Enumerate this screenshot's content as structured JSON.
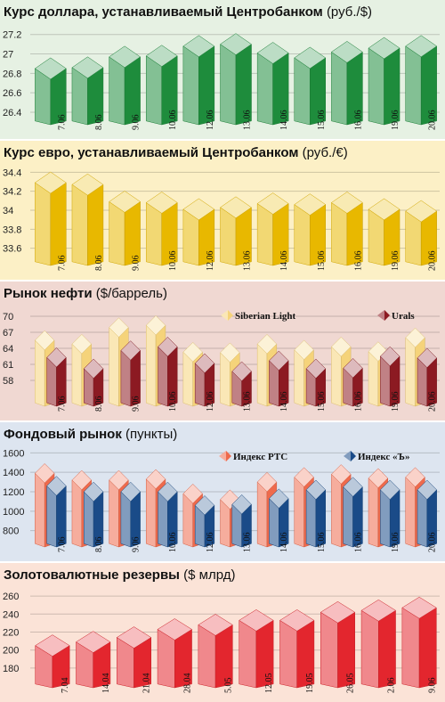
{
  "panels": [
    {
      "title_main": "Курс доллара, устанавливаемый Центробанком",
      "title_unit": "(руб./$)"
    },
    {
      "title_main": "Курс евро, устанавливаемый Центробанком",
      "title_unit": "(руб./€)"
    },
    {
      "title_main": "Рынок нефти",
      "title_unit": "($/баррель)"
    },
    {
      "title_main": "Фондовый рынок",
      "title_unit": "(пункты)"
    },
    {
      "title_main": "Золотовалютные резервы",
      "title_unit": "($ млрд)"
    }
  ],
  "chart_data": [
    {
      "type": "bar",
      "categories": [
        "7.06",
        "8.06",
        "9.06",
        "10.06",
        "12.06",
        "13.06",
        "14.06",
        "15.06",
        "16.06",
        "19.06",
        "20.06"
      ],
      "series": [
        {
          "values": [
            26.85,
            26.86,
            26.97,
            26.98,
            27.08,
            27.1,
            27.01,
            26.96,
            27.02,
            27.06,
            27.08
          ],
          "color": "#1e8c3c"
        }
      ],
      "yticks": [
        26.4,
        26.6,
        26.8,
        27.0,
        27.2
      ],
      "ylim": [
        26.4,
        27.28
      ],
      "grid": true,
      "panel_bg": "#e6f1e3"
    },
    {
      "type": "bar",
      "categories": [
        "7.06",
        "8.06",
        "9.06",
        "10.06",
        "12.06",
        "13.06",
        "14.06",
        "15.06",
        "16.06",
        "19.06",
        "20.06"
      ],
      "series": [
        {
          "values": [
            34.29,
            34.27,
            34.09,
            34.08,
            34.01,
            34.03,
            34.07,
            34.06,
            34.08,
            34.01,
            33.99
          ],
          "color": "#e8b800"
        }
      ],
      "yticks": [
        33.6,
        33.8,
        34.0,
        34.2,
        34.4
      ],
      "ylim": [
        33.55,
        34.45
      ],
      "grid": true,
      "panel_bg": "#fcf0c6"
    },
    {
      "type": "bar",
      "categories": [
        "7.06",
        "8.06",
        "9.06",
        "10.06",
        "12.06",
        "13.06",
        "14.06",
        "15.06",
        "16.06",
        "19.06",
        "20.06"
      ],
      "series": [
        {
          "name": "Siberian Light",
          "values": [
            65.5,
            64.8,
            67.9,
            68.3,
            63.3,
            63.2,
            64.8,
            63.7,
            64.3,
            63.4,
            66.0
          ],
          "color": "#f5d37a"
        },
        {
          "name": "Urals",
          "values": [
            62.3,
            60.2,
            63.6,
            64.3,
            61.2,
            59.7,
            61.7,
            60.2,
            60.3,
            62.5,
            62.2
          ],
          "color": "#8c1a22"
        }
      ],
      "yticks": [
        58,
        61,
        64,
        67,
        70
      ],
      "ylim": [
        55.5,
        71.5
      ],
      "grid": true,
      "legend": "top-right",
      "panel_bg": "#f0d8d2"
    },
    {
      "type": "bar",
      "categories": [
        "7.06",
        "8.06",
        "9.06",
        "10.06",
        "12.06",
        "13.06",
        "14.06",
        "15.06",
        "16.06",
        "19.06",
        "20.06"
      ],
      "series": [
        {
          "name": "Индекс РТС",
          "values": [
            1390,
            1320,
            1320,
            1330,
            1180,
            1120,
            1300,
            1350,
            1380,
            1340,
            1350
          ],
          "color": "#ee6a4c"
        },
        {
          "name": "Индекс «Ъ»",
          "values": [
            1260,
            1200,
            1200,
            1200,
            1060,
            1070,
            1130,
            1220,
            1250,
            1220,
            1220
          ],
          "color": "#1a4b88"
        }
      ],
      "yticks": [
        800,
        1000,
        1200,
        1400,
        1600
      ],
      "ylim": [
        760,
        1640
      ],
      "grid": true,
      "legend": "top-right",
      "panel_bg": "#dde5f0"
    },
    {
      "type": "bar",
      "categories": [
        "7.04",
        "14.04",
        "21.04",
        "28.04",
        "5.05",
        "12.05",
        "19.05",
        "26.05",
        "2.06",
        "9.06"
      ],
      "series": [
        {
          "values": [
            205,
            209,
            214,
            223,
            228,
            233,
            233,
            242,
            244,
            247
          ],
          "color": "#e3262e"
        }
      ],
      "yticks": [
        180,
        200,
        220,
        240,
        260
      ],
      "ylim": [
        172,
        267
      ],
      "grid": true,
      "panel_bg": "#fbe3d7"
    }
  ]
}
